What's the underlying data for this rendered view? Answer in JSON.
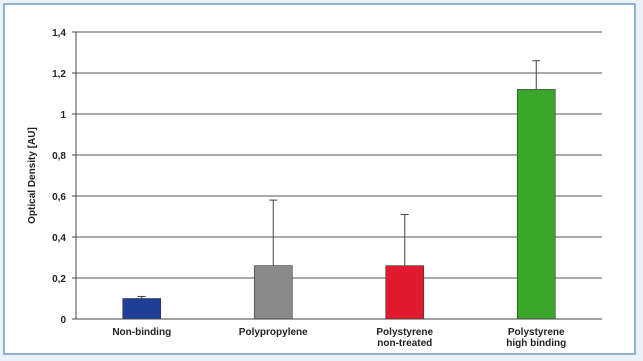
{
  "chart_data": {
    "type": "bar",
    "ylabel": "Optical Density [AU]",
    "xlabel": "",
    "ylim": [
      0,
      1.4
    ],
    "y_ticks": [
      0,
      0.2,
      0.4,
      0.6,
      0.8,
      1.0,
      1.2,
      1.4
    ],
    "y_tick_labels": [
      "0",
      "0,2",
      "0,4",
      "0,6",
      "0,8",
      "1",
      "1,2",
      "1,4"
    ],
    "grid": true,
    "legend": "none",
    "categories": [
      [
        "Non-binding"
      ],
      [
        "Polypropylene"
      ],
      [
        "Polystyrene",
        "non-treated"
      ],
      [
        "Polystyrene",
        "high binding"
      ]
    ],
    "values": [
      0.1,
      0.26,
      0.26,
      1.12
    ],
    "errors": [
      0.01,
      0.32,
      0.25,
      0.14
    ],
    "colors": [
      "#1f3f96",
      "#8a8a8a",
      "#e21a2e",
      "#3aa62c"
    ]
  }
}
